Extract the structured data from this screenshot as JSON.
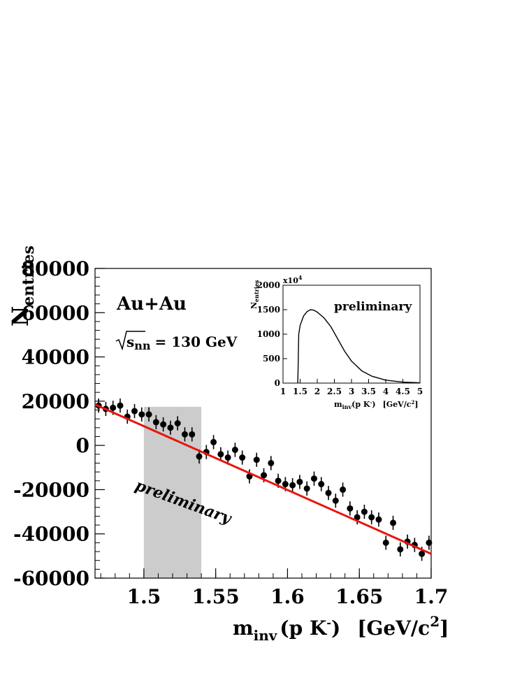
{
  "chart_data": [
    {
      "type": "scatter",
      "ylabel_main": "N",
      "ylabel_sub": "entries",
      "xlabel_main": "m",
      "xlabel_sub": "inv",
      "xlabel_rest": "(p K",
      "xlabel_sup": "-",
      "xlabel_close": ")",
      "xlabel_units": "[GeV/c",
      "xlabel_units_sup": "2",
      "xlabel_units_close": "]",
      "annotation_system": "Au+Au",
      "annotation_energy_sub": "nn",
      "annotation_energy_rest": "= 130 GeV",
      "annotation_prelim": "preliminary",
      "xlim": [
        1.466,
        1.7
      ],
      "ylim": [
        -60000,
        80000
      ],
      "x_ticks": [
        1.5,
        1.55,
        1.6,
        1.65,
        1.7
      ],
      "x_tick_labels": [
        "1.5",
        "1.55",
        "1.6",
        "1.65",
        "1.7"
      ],
      "y_ticks": [
        -60000,
        -40000,
        -20000,
        0,
        20000,
        40000,
        60000,
        80000
      ],
      "y_tick_labels": [
        "-60000",
        "-40000",
        "-20000",
        "0",
        "20000",
        "40000",
        "60000",
        "80000"
      ],
      "shaded_region": [
        1.5,
        1.54
      ],
      "fit_line": {
        "x": [
          1.466,
          1.7
        ],
        "y": [
          18500,
          -49000
        ],
        "color": "#e8160e"
      },
      "points": {
        "x": [
          1.4685,
          1.4735,
          1.4785,
          1.4835,
          1.4885,
          1.4935,
          1.4985,
          1.5035,
          1.5085,
          1.5135,
          1.5185,
          1.5235,
          1.5285,
          1.5335,
          1.5385,
          1.5435,
          1.5485,
          1.5535,
          1.5585,
          1.5635,
          1.5685,
          1.5735,
          1.5785,
          1.5835,
          1.5885,
          1.5935,
          1.5985,
          1.6035,
          1.6085,
          1.6135,
          1.6185,
          1.6235,
          1.6285,
          1.6335,
          1.6385,
          1.6435,
          1.6485,
          1.6535,
          1.6585,
          1.6635,
          1.6685,
          1.6735,
          1.6785,
          1.6835,
          1.6885,
          1.6935,
          1.6985
        ],
        "y": [
          18000,
          16500,
          17000,
          18000,
          13000,
          15500,
          14000,
          14000,
          10500,
          9500,
          8000,
          10000,
          5000,
          5000,
          -5000,
          -3000,
          1500,
          -4000,
          -5500,
          -2000,
          -5500,
          -14000,
          -6500,
          -13500,
          -8000,
          -16000,
          -17500,
          -18000,
          -16500,
          -19500,
          -15000,
          -17500,
          -21500,
          -25000,
          -20000,
          -28500,
          -32500,
          -30000,
          -32500,
          -33500,
          -44000,
          -35000,
          -47000,
          -43500,
          -45000,
          -49000,
          -44000
        ],
        "err": [
          3200,
          3200,
          3200,
          3200,
          3200,
          3200,
          3200,
          3200,
          3200,
          3200,
          3200,
          3200,
          3200,
          3200,
          3200,
          3200,
          3200,
          3200,
          3200,
          3200,
          3200,
          3200,
          3200,
          3200,
          3200,
          3200,
          3200,
          3200,
          3200,
          3200,
          3200,
          3200,
          3200,
          3200,
          3200,
          3200,
          3200,
          3200,
          3200,
          3200,
          3200,
          3200,
          3200,
          3200,
          3200,
          3200,
          3200
        ]
      }
    },
    {
      "type": "line",
      "ylabel_main": "N",
      "ylabel_sub": "entries",
      "scale_label": "x10",
      "scale_sup": "4",
      "xlabel_main": "m",
      "xlabel_sub": "inv",
      "xlabel_rest": "(p K",
      "xlabel_sup": "-",
      "xlabel_close": ")",
      "xlabel_units": "[GeV/c",
      "xlabel_units_sup": "2",
      "xlabel_units_close": "]",
      "annotation_prelim": "preliminary",
      "xlim": [
        1,
        5
      ],
      "ylim": [
        0,
        2000
      ],
      "x_ticks": [
        1,
        1.5,
        2,
        2.5,
        3,
        3.5,
        4,
        4.5,
        5
      ],
      "x_tick_labels": [
        "1",
        "1.5",
        "2",
        "2.5",
        "3",
        "3.5",
        "4",
        "4.5",
        "5"
      ],
      "y_ticks": [
        0,
        500,
        1000,
        1500,
        2000
      ],
      "y_tick_labels": [
        "0",
        "500",
        "1000",
        "1500",
        "2000"
      ],
      "curve": {
        "x": [
          1.43,
          1.44,
          1.46,
          1.5,
          1.6,
          1.7,
          1.8,
          1.9,
          2.0,
          2.2,
          2.4,
          2.6,
          2.8,
          3.0,
          3.3,
          3.6,
          4.0,
          4.5,
          5.0
        ],
        "y": [
          0,
          300,
          1000,
          1180,
          1370,
          1460,
          1500,
          1490,
          1450,
          1330,
          1150,
          900,
          650,
          450,
          250,
          140,
          60,
          20,
          5
        ]
      }
    }
  ]
}
